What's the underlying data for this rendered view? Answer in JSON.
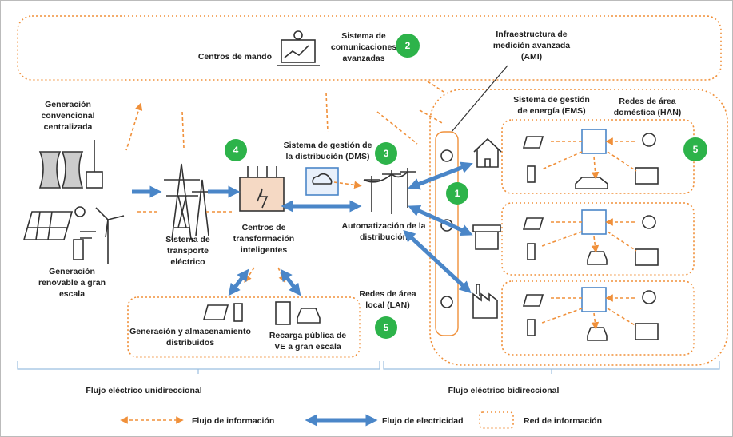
{
  "top": {
    "command_centers": "Centros de mando",
    "communications": [
      "Sistema de",
      "comunicaciones",
      "avanzadas"
    ],
    "badge": "2",
    "ami": [
      "Infraestructura de",
      "medición avanzada",
      "(AMI)"
    ]
  },
  "generation": {
    "conventional": [
      "Generación",
      "convencional",
      "centralizada"
    ],
    "renewable": [
      "Generación",
      "renovable a gran",
      "escala"
    ]
  },
  "transmission": [
    "Sistema de",
    "transporte",
    "eléctrico"
  ],
  "transformation": {
    "label": [
      "Centros de",
      "transformación",
      "inteligentes"
    ],
    "badge": "4"
  },
  "dms": {
    "label": [
      "Sistema de gestión de",
      "la distribución (DMS)"
    ],
    "badge": "3"
  },
  "automation": [
    "Automatización de la",
    "distribución"
  ],
  "lan": {
    "label": [
      "Redes de área",
      "local (LAN)"
    ],
    "badge": "5",
    "distributed": [
      "Generación y almacenamiento",
      "distribuidos"
    ],
    "charging": [
      "Recarga pública de",
      "VE a gran escala"
    ]
  },
  "home": {
    "ems": [
      "Sistema de gestión",
      "de energía (EMS)"
    ],
    "han": [
      "Redes de área",
      "doméstica (HAN)"
    ],
    "badge_meter": "1",
    "badge_han": "5"
  },
  "flows": {
    "unidirectional": "Flujo eléctrico unidireccional",
    "bidirectional": "Flujo eléctrico bidireccional"
  },
  "legend": {
    "information_flow": "Flujo de información",
    "electricity_flow": "Flujo de electricidad",
    "information_network": "Red de información"
  }
}
